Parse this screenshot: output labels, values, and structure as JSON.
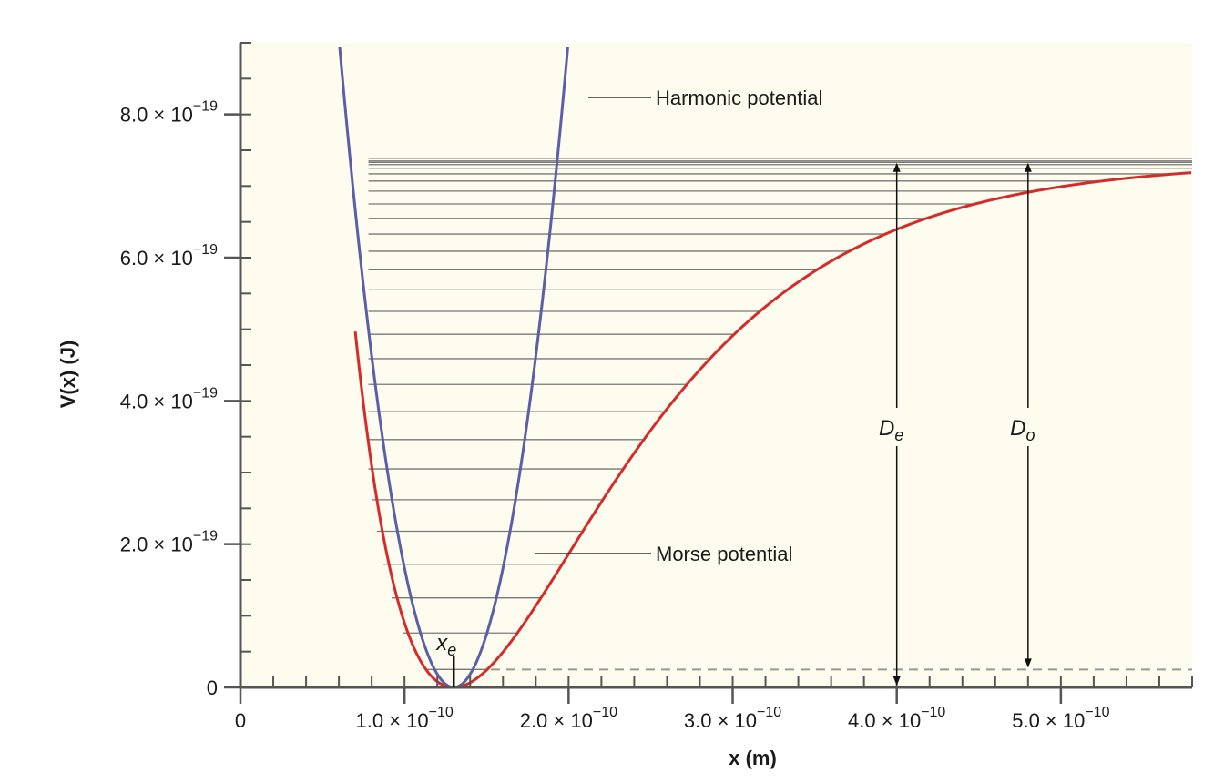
{
  "chart_data": {
    "type": "line",
    "xlabel": "x (m)",
    "ylabel": "V(x) (J)",
    "xlim": [
      0,
      5.8e-10
    ],
    "ylim": [
      0,
      9e-19
    ],
    "x_ticks": [
      {
        "value": 0,
        "label": "0"
      },
      {
        "value": 1e-10,
        "label": "1.0 × 10",
        "exp": "−10"
      },
      {
        "value": 2e-10,
        "label": "2.0 × 10",
        "exp": "−10"
      },
      {
        "value": 3e-10,
        "label": "3.0 × 10",
        "exp": "−10"
      },
      {
        "value": 4e-10,
        "label": "4.0 × 10",
        "exp": "−10"
      },
      {
        "value": 5e-10,
        "label": "5.0 × 10",
        "exp": "−10"
      }
    ],
    "y_ticks": [
      {
        "value": 0,
        "label": "0"
      },
      {
        "value": 2e-19,
        "label": "2.0 × 10",
        "exp": "−19"
      },
      {
        "value": 4e-19,
        "label": "4.0 × 10",
        "exp": "−19"
      },
      {
        "value": 6e-19,
        "label": "6.0 × 10",
        "exp": "−19"
      },
      {
        "value": 8e-19,
        "label": "8.0 × 10",
        "exp": "−19"
      }
    ],
    "minor_tick_x": 2e-11,
    "minor_tick_y": 5e-20,
    "grid": false,
    "series": [
      {
        "name": "Harmonic potential",
        "kind": "harmonic",
        "color": "#5a5fa8",
        "x_eq": 1.3e-10,
        "k": 370
      },
      {
        "name": "Morse potential",
        "kind": "morse",
        "color": "#d42b2b",
        "x_eq": 1.3e-10,
        "De": 7.35e-19,
        "a": 10000000000.0
      }
    ],
    "energy_levels": [
      2.5e-20,
      7.6e-20,
      1.25e-19,
      1.72e-19,
      2.18e-19,
      2.62e-19,
      3.05e-19,
      3.46e-19,
      3.85e-19,
      4.23e-19,
      4.59e-19,
      4.93e-19,
      5.25e-19,
      5.55e-19,
      5.83e-19,
      6.09e-19,
      6.33e-19,
      6.55e-19,
      6.75e-19,
      6.93e-19,
      7.07e-19,
      7.17e-19,
      7.25e-19,
      7.3e-19,
      7.33e-19,
      7.35e-19
    ],
    "level_left_x": 7.8e-11,
    "zero_point_energy": 2.5e-20,
    "annotations": {
      "harmonic_label": "Harmonic potential",
      "morse_label": "Morse potential",
      "xe_label": "x",
      "xe_sub": "e",
      "De_label": "D",
      "De_sub": "e",
      "D0_label": "D",
      "D0_sub": "o"
    },
    "De_arrow_x": 4e-10,
    "D0_arrow_x": 4.8e-10
  },
  "colors": {
    "background": "#fdfcef",
    "axis": "#555555",
    "levels": "#777777",
    "dashed": "#999999",
    "text": "#1a1a1a"
  }
}
